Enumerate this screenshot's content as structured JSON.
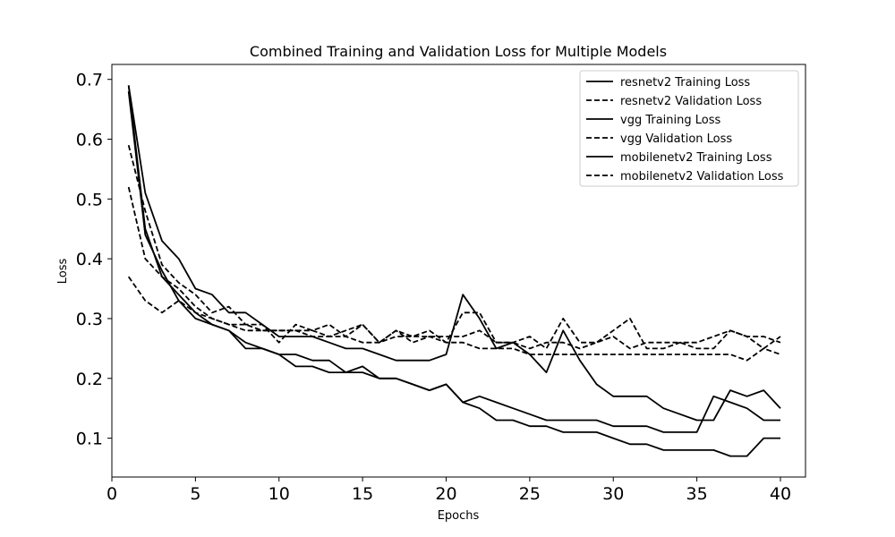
{
  "chart_data": {
    "type": "line",
    "title": "Combined Training and Validation Loss for Multiple Models",
    "xlabel": "Epochs",
    "ylabel": "Loss",
    "xlim": [
      0,
      41.5
    ],
    "ylim": [
      0.035,
      0.725
    ],
    "xticks": [
      0,
      5,
      10,
      15,
      20,
      25,
      30,
      35,
      40
    ],
    "yticks": [
      0.1,
      0.2,
      0.3,
      0.4,
      0.5,
      0.6,
      0.7
    ],
    "legend_position": "top-right",
    "x": [
      1,
      2,
      3,
      4,
      5,
      6,
      7,
      8,
      9,
      10,
      11,
      12,
      13,
      14,
      15,
      16,
      17,
      18,
      19,
      20,
      21,
      22,
      23,
      24,
      25,
      26,
      27,
      28,
      29,
      30,
      31,
      32,
      33,
      34,
      35,
      36,
      37,
      38,
      39,
      40
    ],
    "series": [
      {
        "name": "resnetv2 Training Loss",
        "style": "solid",
        "values": [
          0.69,
          0.51,
          0.43,
          0.4,
          0.35,
          0.34,
          0.31,
          0.31,
          0.29,
          0.27,
          0.27,
          0.27,
          0.26,
          0.25,
          0.25,
          0.24,
          0.23,
          0.23,
          0.23,
          0.24,
          0.34,
          0.3,
          0.25,
          0.26,
          0.24,
          0.21,
          0.28,
          0.23,
          0.19,
          0.17,
          0.17,
          0.17,
          0.15,
          0.14,
          0.13,
          0.13,
          0.18,
          0.17,
          0.18,
          0.15
        ]
      },
      {
        "name": "resnetv2 Validation Loss",
        "style": "dashed",
        "values": [
          0.52,
          0.4,
          0.37,
          0.35,
          0.32,
          0.3,
          0.29,
          0.28,
          0.28,
          0.28,
          0.28,
          0.28,
          0.27,
          0.27,
          0.26,
          0.26,
          0.27,
          0.27,
          0.27,
          0.27,
          0.27,
          0.28,
          0.26,
          0.26,
          0.25,
          0.26,
          0.26,
          0.25,
          0.26,
          0.27,
          0.25,
          0.26,
          0.26,
          0.26,
          0.25,
          0.25,
          0.28,
          0.27,
          0.25,
          0.27
        ]
      },
      {
        "name": "vgg Training Loss",
        "style": "solid",
        "values": [
          0.68,
          0.44,
          0.38,
          0.33,
          0.3,
          0.29,
          0.28,
          0.25,
          0.25,
          0.24,
          0.22,
          0.22,
          0.21,
          0.21,
          0.22,
          0.2,
          0.2,
          0.19,
          0.18,
          0.19,
          0.16,
          0.17,
          0.16,
          0.15,
          0.14,
          0.13,
          0.13,
          0.13,
          0.13,
          0.12,
          0.12,
          0.12,
          0.11,
          0.11,
          0.11,
          0.17,
          0.16,
          0.15,
          0.13,
          0.13
        ]
      },
      {
        "name": "vgg Validation Loss",
        "style": "dashed",
        "values": [
          0.37,
          0.33,
          0.31,
          0.33,
          0.31,
          0.3,
          0.29,
          0.29,
          0.28,
          0.28,
          0.28,
          0.27,
          0.27,
          0.28,
          0.29,
          0.26,
          0.28,
          0.26,
          0.27,
          0.26,
          0.26,
          0.25,
          0.25,
          0.25,
          0.24,
          0.24,
          0.24,
          0.24,
          0.24,
          0.24,
          0.24,
          0.24,
          0.24,
          0.24,
          0.24,
          0.24,
          0.24,
          0.23,
          0.25,
          0.24
        ]
      },
      {
        "name": "mobilenetv2 Training Loss",
        "style": "solid",
        "values": [
          0.69,
          0.45,
          0.37,
          0.34,
          0.31,
          0.29,
          0.28,
          0.26,
          0.25,
          0.24,
          0.24,
          0.23,
          0.23,
          0.21,
          0.21,
          0.2,
          0.2,
          0.19,
          0.18,
          0.19,
          0.16,
          0.15,
          0.13,
          0.13,
          0.12,
          0.12,
          0.11,
          0.11,
          0.11,
          0.1,
          0.09,
          0.09,
          0.08,
          0.08,
          0.08,
          0.08,
          0.07,
          0.07,
          0.1,
          0.1
        ]
      },
      {
        "name": "mobilenetv2 Validation Loss",
        "style": "dashed",
        "values": [
          0.59,
          0.48,
          0.39,
          0.36,
          0.34,
          0.31,
          0.32,
          0.29,
          0.29,
          0.26,
          0.29,
          0.28,
          0.29,
          0.27,
          0.29,
          0.26,
          0.28,
          0.27,
          0.28,
          0.26,
          0.31,
          0.31,
          0.26,
          0.26,
          0.27,
          0.25,
          0.3,
          0.26,
          0.26,
          0.28,
          0.3,
          0.25,
          0.25,
          0.26,
          0.26,
          0.27,
          0.28,
          0.27,
          0.27,
          0.26
        ]
      }
    ]
  }
}
